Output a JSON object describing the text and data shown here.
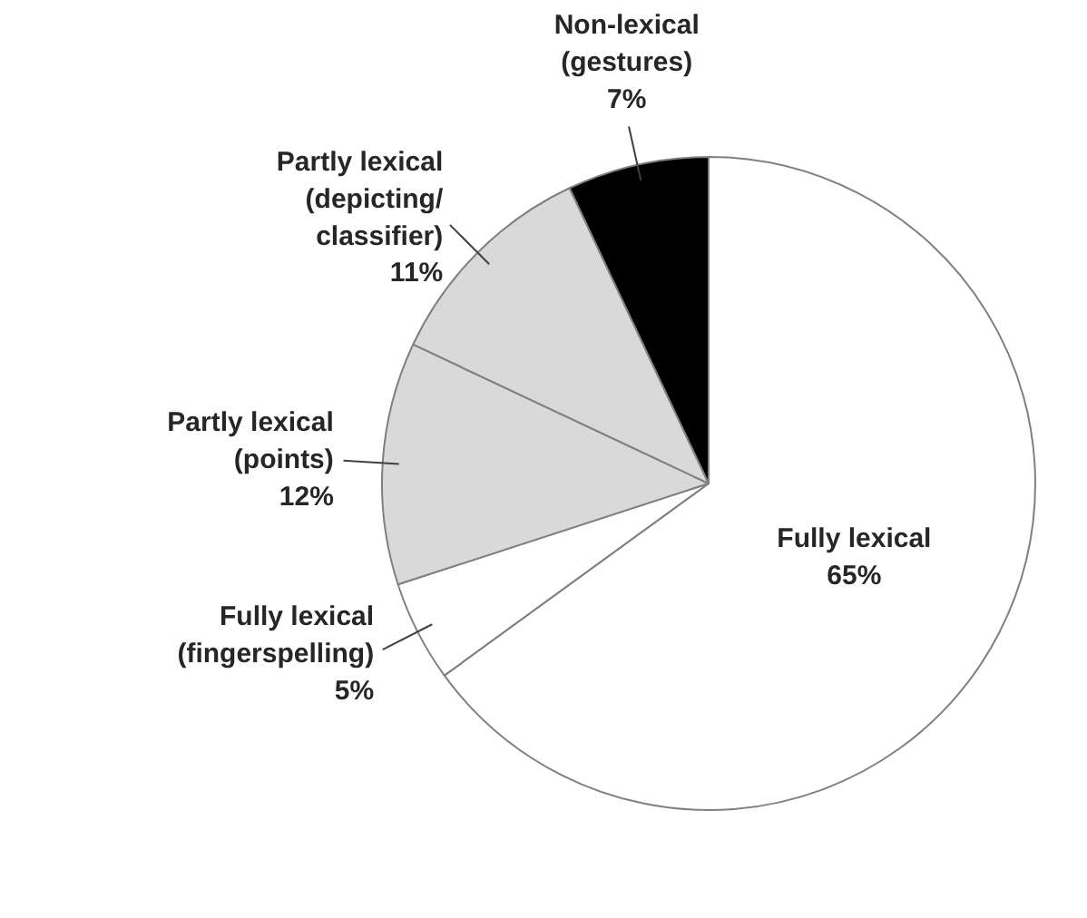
{
  "chart_data": {
    "type": "pie",
    "categories": [
      "Fully lexical",
      "Fully lexical (fingerspelling)",
      "Partly lexical (points)",
      "Partly lexical (depicting/ classifier)",
      "Non-lexical (gestures)"
    ],
    "values": [
      65,
      5,
      12,
      11,
      7
    ],
    "value_labels": [
      "65%",
      "5%",
      "12%",
      "11%",
      "7%"
    ],
    "colors": [
      "#ffffff",
      "#ffffff",
      "#d9d9d9",
      "#d9d9d9",
      "#000000"
    ]
  }
}
